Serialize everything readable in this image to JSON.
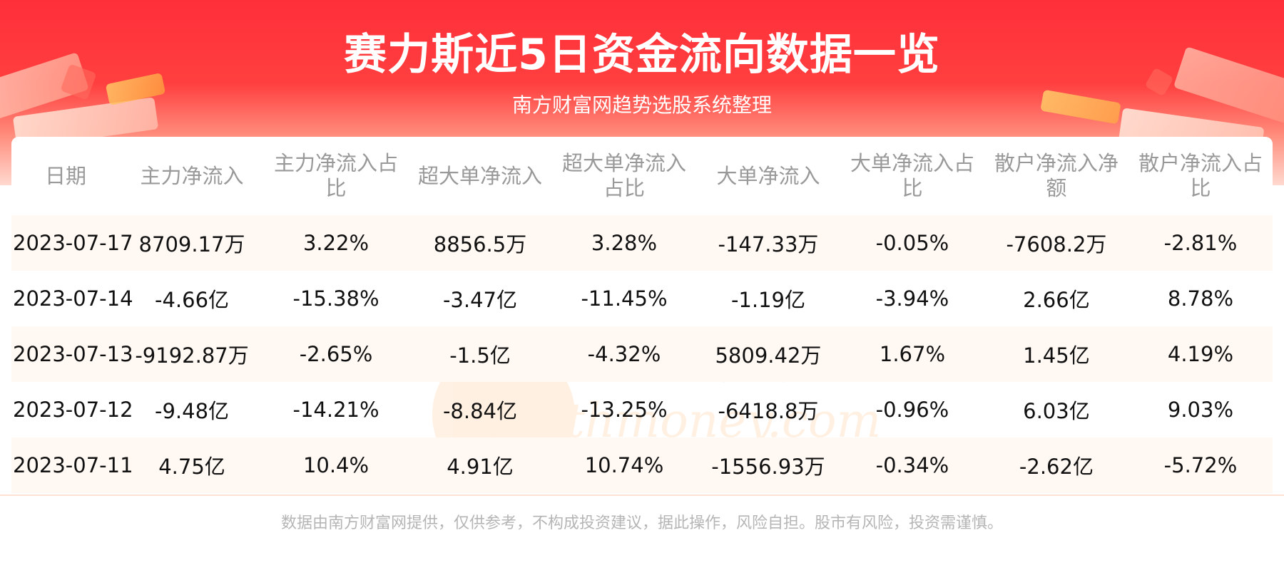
{
  "header": {
    "title": "赛力斯近5日资金流向数据一览",
    "subtitle": "南方财富网趋势选股系统整理"
  },
  "watermark": {
    "cn": "南方财富网",
    "en": "Southmoney.com"
  },
  "table": {
    "columns": [
      "日期",
      "主力净流入",
      "主力净流入占比",
      "超大单净流入",
      "超大单净流入占比",
      "大单净流入",
      "大单净流入占比",
      "散户净流入净额",
      "散户净流入占比"
    ],
    "rows": [
      [
        "2023-07-17",
        "8709.17万",
        "3.22%",
        "8856.5万",
        "3.28%",
        "-147.33万",
        "-0.05%",
        "-7608.2万",
        "-2.81%"
      ],
      [
        "2023-07-14",
        "-4.66亿",
        "-15.38%",
        "-3.47亿",
        "-11.45%",
        "-1.19亿",
        "-3.94%",
        "2.66亿",
        "8.78%"
      ],
      [
        "2023-07-13",
        "-9192.87万",
        "-2.65%",
        "-1.5亿",
        "-4.32%",
        "5809.42万",
        "1.67%",
        "1.45亿",
        "4.19%"
      ],
      [
        "2023-07-12",
        "-9.48亿",
        "-14.21%",
        "-8.84亿",
        "-13.25%",
        "-6418.8万",
        "-0.96%",
        "6.03亿",
        "9.03%"
      ],
      [
        "2023-07-11",
        "4.75亿",
        "10.4%",
        "4.91亿",
        "10.74%",
        "-1556.93万",
        "-0.34%",
        "-2.62亿",
        "-5.72%"
      ]
    ]
  },
  "footer": {
    "disclaimer": "数据由南方财富网提供，仅供参考，不构成投资建议，据此操作，风险自担。股市有风险，投资需谨慎。"
  },
  "colors": {
    "header_red": "#ff2f3a",
    "header_text": "#ffffff",
    "stripe_row": "#fff8f3",
    "column_header_text": "#999999",
    "cell_text": "#111111",
    "footer_text": "#b5b5b5"
  }
}
